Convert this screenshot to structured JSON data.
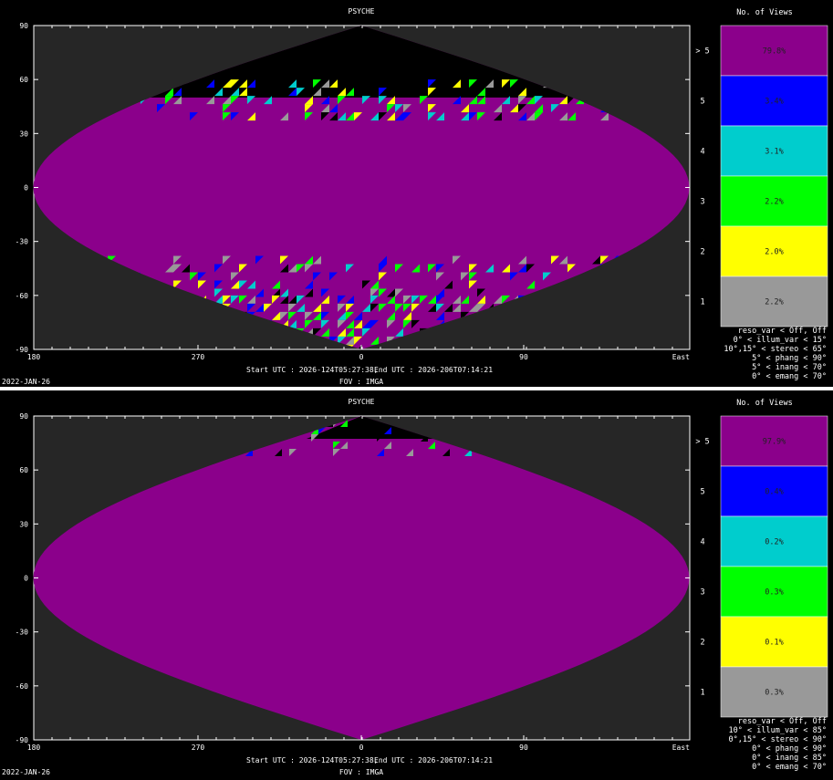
{
  "chart_data": [
    {
      "type": "heatmap",
      "title": "PSYCHE",
      "date": "2022-JAN-26",
      "start_utc": "Start UTC : 2026-124T05:27:38,",
      "end_utc": "End UTC : 2026-206T07:14:21",
      "fov": "FOV : IMGA",
      "x_ticks": [
        "180",
        "270",
        "0",
        "90"
      ],
      "x_end_label": "East",
      "y_ticks": [
        "90",
        "60",
        "30",
        "0",
        "-30",
        "-60",
        "-90"
      ],
      "legend_title": "No. of Views",
      "categories": [
        "> 5",
        "5",
        "4",
        "3",
        "2",
        "1"
      ],
      "values": [
        79.8,
        3.4,
        3.1,
        2.2,
        2.0,
        2.2
      ],
      "value_labels": [
        "79.8%",
        "3.4%",
        "3.1%",
        "2.2%",
        "2.0%",
        "2.2%"
      ],
      "colors": [
        "#8b008b",
        "#0000ff",
        "#00cdcd",
        "#00ff00",
        "#ffff00",
        "#999999"
      ],
      "constraints": [
        "reso_var < Off, Off",
        "0° < illum_var < 15°",
        "10°,15° < stereo < 65°",
        "5° < phang < 90°",
        "5° < inang < 70°",
        "0° < emang < 70°"
      ]
    },
    {
      "type": "heatmap",
      "title": "PSYCHE",
      "date": "2022-JAN-26",
      "start_utc": "Start UTC : 2026-124T05:27:38,",
      "end_utc": "End UTC : 2026-206T07:14:21",
      "fov": "FOV : IMGA",
      "x_ticks": [
        "180",
        "270",
        "0",
        "90"
      ],
      "x_end_label": "East",
      "y_ticks": [
        "90",
        "60",
        "30",
        "0",
        "-30",
        "-60",
        "-90"
      ],
      "legend_title": "No. of Views",
      "categories": [
        "> 5",
        "5",
        "4",
        "3",
        "2",
        "1"
      ],
      "values": [
        97.9,
        0.4,
        0.2,
        0.3,
        0.1,
        0.3
      ],
      "value_labels": [
        "97.9%",
        "0.4%",
        "0.2%",
        "0.3%",
        "0.1%",
        "0.3%"
      ],
      "colors": [
        "#8b008b",
        "#0000ff",
        "#00cdcd",
        "#00ff00",
        "#ffff00",
        "#999999"
      ],
      "constraints": [
        "reso_var < Off, Off",
        "10° < illum_var < 85°",
        "0°,15° < stereo < 90°",
        "0° < phang < 90°",
        "0° < inang < 85°",
        "0° < emang < 70°"
      ]
    }
  ]
}
